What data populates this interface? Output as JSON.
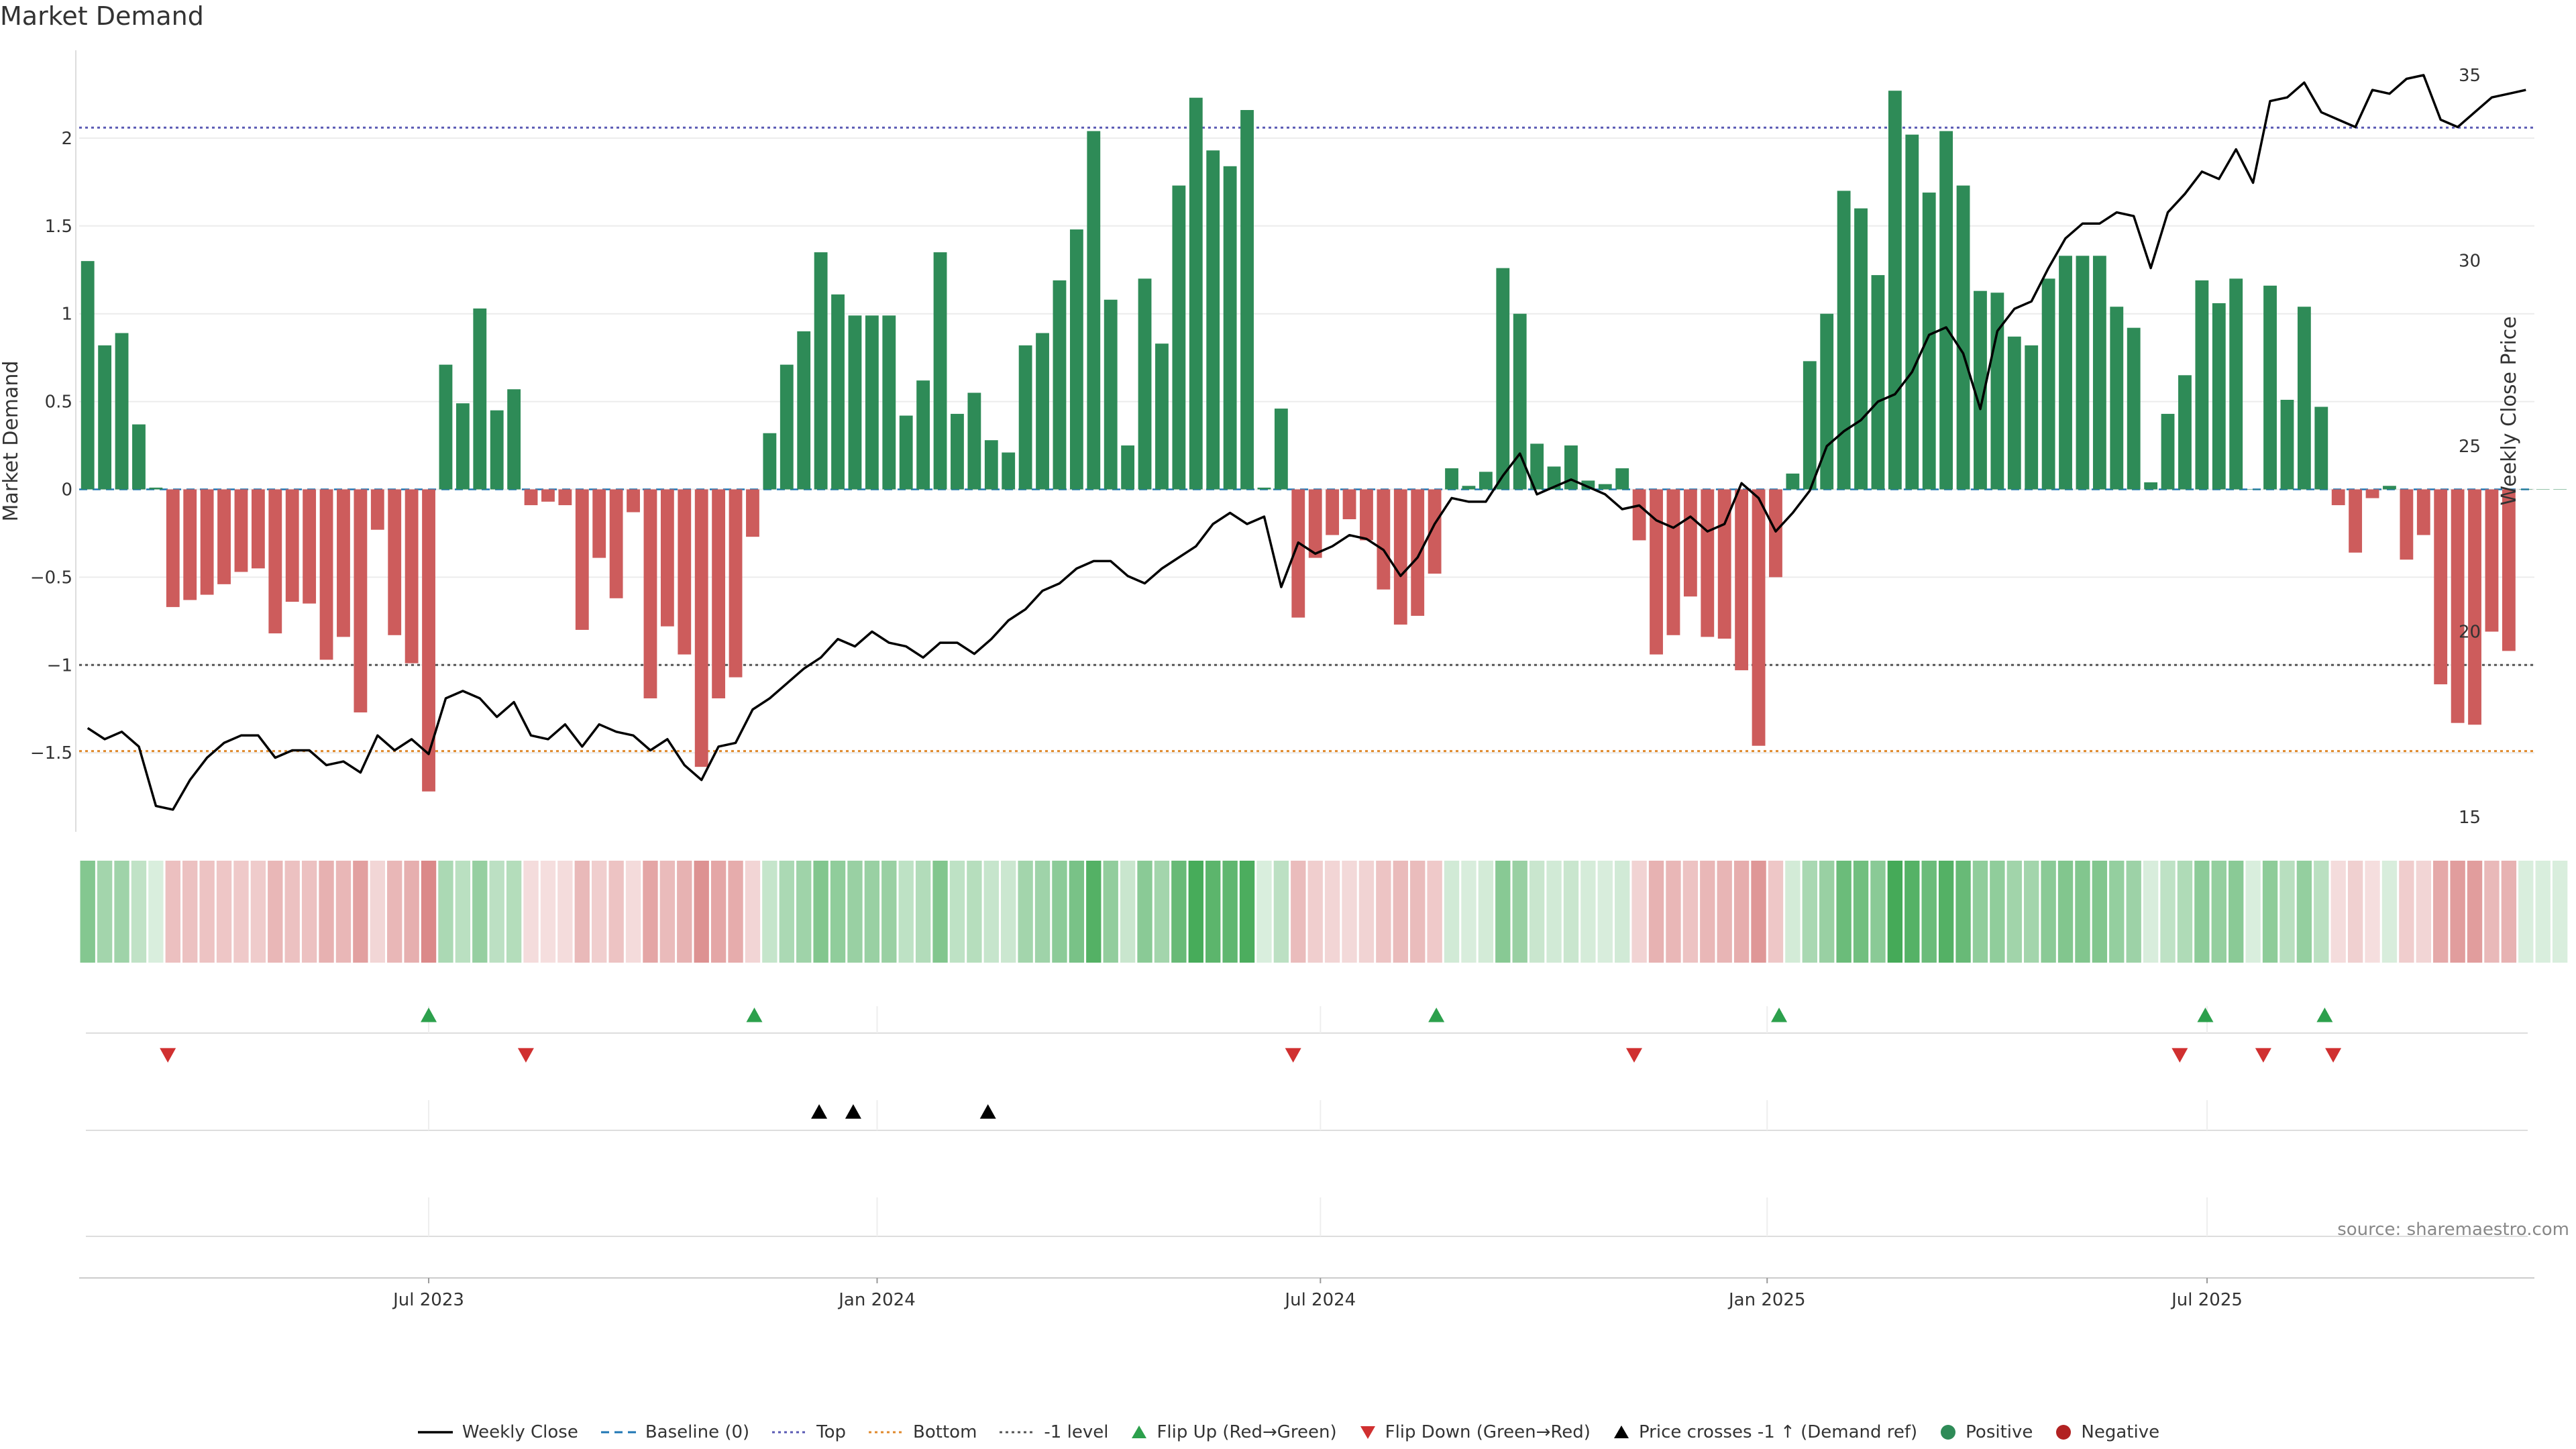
{
  "chart_data": {
    "type": "bar",
    "title": "Market Demand",
    "source_label": "source: sharemaestro.com",
    "left_axis": {
      "label": "Market Demand",
      "ticks": [
        2,
        1.5,
        1,
        0.5,
        0,
        -0.5,
        -1,
        -1.5
      ],
      "tick_labels": [
        "2",
        "1.5",
        "1",
        "0.5",
        "0",
        "−0.5",
        "−1",
        "−1.5"
      ],
      "range": [
        -1.95,
        2.5
      ]
    },
    "right_axis": {
      "label": "Weekly Close Price",
      "ticks": [
        35,
        30,
        25,
        20,
        15
      ],
      "tick_labels": [
        "35",
        "30",
        "25",
        "20",
        "15"
      ],
      "range": [
        15,
        35
      ]
    },
    "x_axis": {
      "week_count": 144,
      "ticks": [
        {
          "label": "Jul 2023",
          "week": 20.5
        },
        {
          "label": "Jan 2024",
          "week": 46.8
        },
        {
          "label": "Jul 2024",
          "week": 72.8
        },
        {
          "label": "Jan 2025",
          "week": 99.0
        },
        {
          "label": "Jul 2025",
          "week": 124.8
        }
      ]
    },
    "reference_lines": [
      {
        "name": "Top",
        "value": 2.06,
        "color": "#5a5ab4",
        "style": "dotted"
      },
      {
        "name": "-1 level",
        "value": -1.0,
        "color": "#555555",
        "style": "dotted"
      },
      {
        "name": "Bottom",
        "value": -1.49,
        "color": "#e08a2c",
        "style": "dotted"
      },
      {
        "name": "Baseline (0)",
        "value": 0,
        "color": "#1f77b4",
        "style": "dashed"
      }
    ],
    "series": [
      {
        "name": "Market Demand",
        "values": [
          1.3,
          0.82,
          0.89,
          0.37,
          0.01,
          -0.67,
          -0.63,
          -0.6,
          -0.54,
          -0.47,
          -0.45,
          -0.82,
          -0.64,
          -0.65,
          -0.97,
          -0.84,
          -1.27,
          -0.23,
          -0.83,
          -0.99,
          -1.72,
          0.71,
          0.49,
          1.03,
          0.45,
          0.57,
          -0.09,
          -0.07,
          -0.09,
          -0.8,
          -0.39,
          -0.62,
          -0.13,
          -1.19,
          -0.78,
          -0.94,
          -1.58,
          -1.19,
          -1.07,
          -0.27,
          0.32,
          0.71,
          0.9,
          1.35,
          1.11,
          0.99,
          0.99,
          0.99,
          0.42,
          0.62,
          1.35,
          0.43,
          0.55,
          0.28,
          0.21,
          0.82,
          0.89,
          1.19,
          1.48,
          2.04,
          1.08,
          0.25,
          1.2,
          0.83,
          1.73,
          2.23,
          1.93,
          1.84,
          2.16,
          0.01,
          0.46,
          -0.73,
          -0.39,
          -0.26,
          -0.17,
          -0.29,
          -0.57,
          -0.77,
          -0.72,
          -0.48,
          0.12,
          0.02,
          0.1,
          1.26,
          1.0,
          0.26,
          0.13,
          0.25,
          0.05,
          0.03,
          0.12,
          -0.29,
          -0.94,
          -0.83,
          -0.61,
          -0.84,
          -0.85,
          -1.03,
          -1.46,
          -0.5,
          0.09,
          0.73,
          1.0,
          1.7,
          1.6,
          1.22,
          2.27,
          2.02,
          1.69,
          2.04,
          1.73,
          1.13,
          1.12,
          0.87,
          0.82,
          1.2,
          1.33,
          1.33,
          1.33,
          1.04,
          0.92,
          0.04,
          0.43,
          0.65,
          1.19,
          1.06,
          1.2,
          0.0,
          1.16,
          0.51,
          1.04,
          0.47,
          -0.09,
          -0.36,
          -0.05,
          0.02,
          -0.4,
          -0.26,
          -1.11,
          -1.33,
          -1.34,
          -0.81,
          -0.92,
          0.0,
          0.0,
          0.0
        ]
      },
      {
        "name": "Weekly Close",
        "values": [
          17.4,
          17.1,
          17.3,
          16.9,
          15.3,
          15.2,
          16.0,
          16.6,
          17.0,
          17.2,
          17.2,
          16.6,
          16.8,
          16.8,
          16.4,
          16.5,
          16.2,
          17.2,
          16.8,
          17.1,
          16.7,
          18.2,
          18.4,
          18.2,
          17.7,
          18.1,
          17.2,
          17.1,
          17.5,
          16.9,
          17.5,
          17.3,
          17.2,
          16.8,
          17.1,
          16.4,
          16.0,
          16.9,
          17.0,
          17.9,
          18.2,
          18.6,
          19.0,
          19.3,
          19.8,
          19.6,
          20.0,
          19.7,
          19.6,
          19.3,
          19.7,
          19.7,
          19.4,
          19.8,
          20.3,
          20.6,
          21.1,
          21.3,
          21.7,
          21.9,
          21.9,
          21.5,
          21.3,
          21.7,
          22.0,
          22.3,
          22.9,
          23.2,
          22.9,
          23.1,
          21.2,
          22.4,
          22.1,
          22.3,
          22.6,
          22.5,
          22.2,
          21.5,
          22.0,
          22.9,
          23.6,
          23.5,
          23.5,
          24.2,
          24.8,
          23.7,
          23.9,
          24.1,
          23.9,
          23.7,
          23.3,
          23.4,
          23.0,
          22.8,
          23.1,
          22.7,
          22.9,
          24.0,
          23.6,
          22.7,
          23.2,
          23.8,
          25.0,
          25.4,
          25.7,
          26.2,
          26.4,
          27.0,
          28.0,
          28.2,
          27.5,
          26.0,
          28.1,
          28.7,
          28.9,
          29.8,
          30.6,
          31.0,
          31.0,
          31.3,
          31.2,
          29.8,
          31.3,
          31.8,
          32.4,
          32.2,
          33.0,
          32.1,
          34.3,
          34.4,
          34.8,
          34.0,
          33.8,
          33.6,
          34.6,
          34.5,
          34.9,
          35.0,
          33.8,
          33.6,
          34.0,
          34.4,
          34.5,
          34.6
        ]
      }
    ],
    "heat_strip": {
      "name": "Demand heat strip"
    },
    "flip_up_weeks": [
      20.5,
      39.6,
      79.6,
      99.7,
      124.7,
      131.7
    ],
    "flip_down_weeks": [
      5.2,
      26.2,
      71.2,
      91.2,
      123.2,
      128.1,
      132.2
    ],
    "price_cross_weeks": [
      43.4,
      45.4,
      53.3
    ],
    "legend": [
      {
        "label": "Weekly Close",
        "icon": "line-solid-icon",
        "color": "#000000"
      },
      {
        "label": "Baseline (0)",
        "icon": "line-dashed-icon",
        "color": "#1f77b4"
      },
      {
        "label": "Top",
        "icon": "line-dotted-icon",
        "color": "#5a5ab4"
      },
      {
        "label": "Bottom",
        "icon": "line-dotted-icon",
        "color": "#e08a2c"
      },
      {
        "label": "-1 level",
        "icon": "line-dotted-icon",
        "color": "#555555"
      },
      {
        "label": "Flip Up (Red→Green)",
        "icon": "triangle-up-icon",
        "color": "#2ca04c"
      },
      {
        "label": "Flip Down (Green→Red)",
        "icon": "triangle-down-icon",
        "color": "#d03030"
      },
      {
        "label": "Price crosses -1 ↑ (Demand ref)",
        "icon": "triangle-up-icon",
        "color": "#000000"
      },
      {
        "label": "Positive",
        "icon": "circle-icon",
        "color": "#2e8b57"
      },
      {
        "label": "Negative",
        "icon": "circle-icon",
        "color": "#b22222"
      }
    ],
    "colors": {
      "positive": "#2e8b57",
      "negative": "#cd5c5c",
      "price": "#000000",
      "strip_green": "#2ea043",
      "strip_red": "#cd5c5c"
    }
  }
}
